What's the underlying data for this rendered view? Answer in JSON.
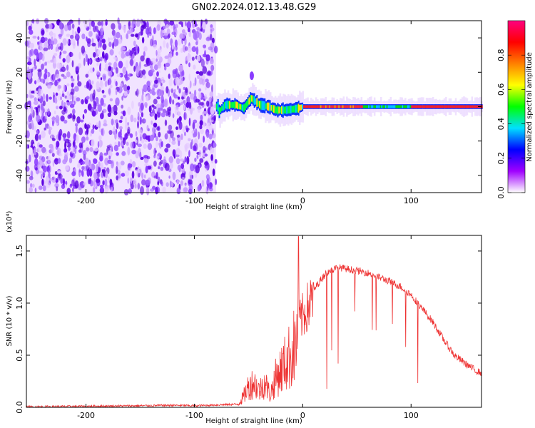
{
  "title": "GN02.2024.012.13.48.G29",
  "chart_data": [
    {
      "type": "heatmap",
      "xlabel": "Height of straight line (km)",
      "ylabel": "Frequency (Hz)",
      "xlim": [
        -255,
        165
      ],
      "ylim": [
        -50,
        50
      ],
      "x_ticks": [
        -200,
        -100,
        0,
        100
      ],
      "y_ticks": [
        -40,
        -20,
        0,
        20,
        40
      ],
      "colorbar": {
        "label": "Normalized spectral amplitude",
        "range": [
          0,
          1
        ],
        "ticks": [
          0.0,
          0.2,
          0.4,
          0.6,
          0.8
        ],
        "tick_labels": [
          "0.0",
          "0.2",
          "0.4",
          "0.6",
          "0.8"
        ],
        "colors": [
          "#ffffff",
          "#a000ff",
          "#0000ff",
          "#00e0ff",
          "#00ff00",
          "#ffff00",
          "#ff8000",
          "#ff0000",
          "#ff0080"
        ]
      },
      "noise_region_x": [
        -255,
        -80
      ],
      "signal_track": [
        {
          "x": -78,
          "y": -3
        },
        {
          "x": -72,
          "y": 1
        },
        {
          "x": -62,
          "y": 1
        },
        {
          "x": -55,
          "y": -1
        },
        {
          "x": -48,
          "y": 5
        },
        {
          "x": -40,
          "y": 1
        },
        {
          "x": -32,
          "y": 0
        },
        {
          "x": -25,
          "y": -2
        },
        {
          "x": -15,
          "y": -2
        },
        {
          "x": -5,
          "y": -1
        },
        {
          "x": 0,
          "y": 0
        },
        {
          "x": 20,
          "y": 0
        },
        {
          "x": 60,
          "y": 0
        },
        {
          "x": 100,
          "y": 0
        },
        {
          "x": 165,
          "y": 0
        }
      ],
      "side_feature": {
        "x": -47,
        "y": 18
      }
    },
    {
      "type": "line",
      "xlabel": "Height of straight line (km)",
      "ylabel": "SNR (10 * v/v)",
      "y_multiplier": "(x10⁴)",
      "xlim": [
        -255,
        165
      ],
      "ylim": [
        0,
        1.65
      ],
      "x_ticks": [
        -200,
        -100,
        0,
        100
      ],
      "y_ticks": [
        0.0,
        0.5,
        1.0,
        1.5
      ],
      "y_tick_labels": [
        "0.0",
        "0.5",
        "1.0",
        "1.5"
      ],
      "series": [
        {
          "color": "#ee3333",
          "x": [
            -255,
            -200,
            -150,
            -120,
            -100,
            -60,
            -55,
            -50,
            -45,
            -40,
            -35,
            -30,
            -25,
            -20,
            -15,
            -10,
            -5,
            0,
            5,
            10,
            15,
            20,
            25,
            30,
            35,
            40,
            50,
            60,
            70,
            80,
            90,
            100,
            110,
            120,
            130,
            140,
            150,
            160,
            165
          ],
          "values": [
            0.005,
            0.01,
            0.015,
            0.02,
            0.015,
            0.03,
            0.12,
            0.25,
            0.3,
            0.2,
            0.3,
            0.15,
            0.35,
            0.45,
            0.55,
            0.65,
            0.82,
            0.92,
            1.02,
            1.12,
            1.2,
            1.27,
            1.31,
            1.33,
            1.34,
            1.33,
            1.31,
            1.29,
            1.25,
            1.21,
            1.16,
            1.08,
            0.95,
            0.82,
            0.65,
            0.5,
            0.42,
            0.35,
            0.33
          ]
        }
      ]
    }
  ]
}
